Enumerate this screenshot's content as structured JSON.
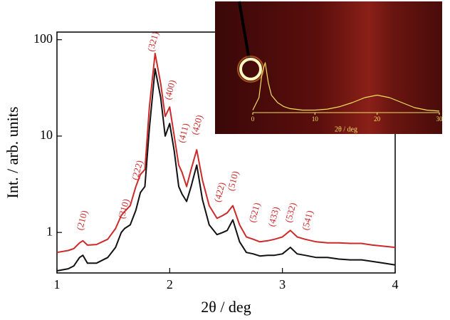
{
  "chart_data": [
    {
      "type": "line",
      "ylabel": "Int. / arb. units",
      "xlabel": "2θ / deg",
      "xlim": [
        1,
        4
      ],
      "xticks": [
        1,
        2,
        3,
        4
      ],
      "ylim": [
        0.38,
        120
      ],
      "yticks": [
        1,
        10,
        100
      ],
      "ylog": true,
      "x": [
        1.0,
        1.1,
        1.15,
        1.2,
        1.23,
        1.27,
        1.35,
        1.45,
        1.52,
        1.57,
        1.6,
        1.65,
        1.7,
        1.74,
        1.78,
        1.82,
        1.87,
        1.92,
        1.96,
        2.0,
        2.04,
        2.08,
        2.11,
        2.15,
        2.19,
        2.24,
        2.29,
        2.35,
        2.42,
        2.47,
        2.51,
        2.56,
        2.62,
        2.68,
        2.74,
        2.8,
        2.87,
        2.93,
        3.0,
        3.07,
        3.13,
        3.2,
        3.3,
        3.4,
        3.5,
        3.6,
        3.7,
        3.8,
        3.9,
        4.0
      ],
      "series": [
        {
          "color": "#cc2a2a",
          "values": [
            0.62,
            0.65,
            0.68,
            0.78,
            0.82,
            0.74,
            0.75,
            0.85,
            1.1,
            1.5,
            1.65,
            1.9,
            3.0,
            4.0,
            4.5,
            20,
            72,
            35,
            16,
            20,
            10,
            5,
            4.2,
            3.0,
            4.5,
            7.2,
            3.5,
            1.9,
            1.4,
            1.5,
            1.6,
            1.9,
            1.2,
            0.9,
            0.85,
            0.8,
            0.82,
            0.85,
            0.9,
            1.05,
            0.9,
            0.85,
            0.8,
            0.78,
            0.78,
            0.77,
            0.77,
            0.74,
            0.72,
            0.7
          ]
        },
        {
          "color": "#111111",
          "values": [
            0.4,
            0.42,
            0.45,
            0.55,
            0.58,
            0.48,
            0.48,
            0.55,
            0.7,
            1.0,
            1.1,
            1.2,
            1.7,
            2.6,
            3.0,
            12,
            50,
            25,
            10,
            13.5,
            7,
            3,
            2.5,
            2.1,
            3,
            5,
            2.2,
            1.2,
            0.95,
            1.0,
            1.05,
            1.35,
            0.8,
            0.62,
            0.6,
            0.57,
            0.58,
            0.58,
            0.6,
            0.7,
            0.6,
            0.58,
            0.55,
            0.55,
            0.53,
            0.52,
            0.52,
            0.5,
            0.48,
            0.46
          ]
        }
      ],
      "annotations": [
        {
          "text": "(210)",
          "x": 1.23,
          "y": 1.33
        },
        {
          "text": "(310)",
          "x": 1.6,
          "y": 1.75
        },
        {
          "text": "(222)",
          "x": 1.72,
          "y": 4.4
        },
        {
          "text": "(321)",
          "x": 1.86,
          "y": 95
        },
        {
          "text": "(400)",
          "x": 2.01,
          "y": 30
        },
        {
          "text": "(411)",
          "x": 2.13,
          "y": 10.7
        },
        {
          "text": "(420)",
          "x": 2.25,
          "y": 13
        },
        {
          "text": "(422)",
          "x": 2.45,
          "y": 2.6
        },
        {
          "text": "(510)",
          "x": 2.57,
          "y": 3.4
        },
        {
          "text": "(521)",
          "x": 2.76,
          "y": 1.6
        },
        {
          "text": "(433)",
          "x": 2.93,
          "y": 1.45
        },
        {
          "text": "(532)",
          "x": 3.08,
          "y": 1.6
        },
        {
          "text": "(541)",
          "x": 3.23,
          "y": 1.33
        }
      ]
    },
    {
      "type": "line",
      "xlabel": "2θ / deg",
      "xlim": [
        0,
        30
      ],
      "xticks": [
        0,
        10,
        20,
        30
      ],
      "ylim": [
        0,
        1
      ],
      "x": [
        0,
        1,
        1.5,
        2,
        2.5,
        3,
        4,
        5,
        6,
        8,
        10,
        12,
        14,
        16,
        18,
        20,
        22,
        24,
        26,
        28,
        30
      ],
      "series": [
        {
          "color": "#f0e060",
          "values": [
            0.05,
            0.3,
            0.8,
            1.0,
            0.6,
            0.35,
            0.2,
            0.12,
            0.08,
            0.05,
            0.05,
            0.07,
            0.12,
            0.2,
            0.3,
            0.35,
            0.3,
            0.2,
            0.1,
            0.05,
            0.03
          ]
        }
      ]
    }
  ]
}
